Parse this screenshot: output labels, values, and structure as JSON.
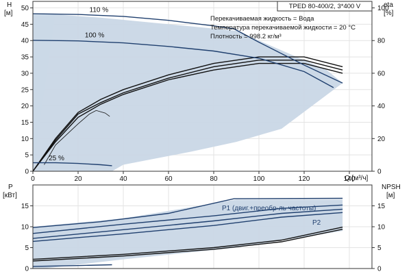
{
  "chart_data": {
    "type": "line",
    "title": "TPED 80-400/2, 3*400 V",
    "info_lines": [
      "Перекачиваемая жидкость = Вода",
      "Температура перекачиваемой жидкости = 20 °C",
      "Плотность = 998.2 кг/м³"
    ],
    "colors": {
      "curve": "#1f3f6e",
      "envelope": "#c9d7e6",
      "envelope_light": "#e6eef6",
      "black": "#111111",
      "grid": "#e3e3e3"
    },
    "top": {
      "ylabel": "H",
      "yunit": "[м]",
      "y2label": "eta",
      "y2unit": "[%]",
      "xlabel": "Q [м³/ч]",
      "xlim": [
        0,
        150
      ],
      "ylim": [
        0,
        52
      ],
      "y2lim": [
        0,
        104
      ],
      "xticks": [
        "0",
        "20",
        "40",
        "60",
        "80",
        "100",
        "120",
        "140"
      ],
      "yticks": [
        "0",
        "5",
        "10",
        "15",
        "20",
        "25",
        "30",
        "35",
        "40",
        "45",
        "50"
      ],
      "y2ticks": [
        "0",
        "20",
        "40",
        "60",
        "80",
        "100"
      ],
      "envelope": [
        [
          0,
          48
        ],
        [
          10,
          48
        ],
        [
          30,
          47
        ],
        [
          60,
          45
        ],
        [
          90,
          43
        ],
        [
          110,
          37
        ],
        [
          130,
          31
        ],
        [
          137,
          27
        ],
        [
          110,
          13
        ],
        [
          90,
          9
        ],
        [
          70,
          6
        ],
        [
          40,
          2
        ],
        [
          35,
          0
        ],
        [
          0,
          0
        ]
      ],
      "head_curves": [
        {
          "name": "110 %",
          "points": [
            [
              0,
              48.2
            ],
            [
              20,
              48
            ],
            [
              40,
              47.4
            ],
            [
              60,
              46.2
            ],
            [
              80,
              44.5
            ],
            [
              89,
              43.6
            ],
            [
              100,
              39.5
            ],
            [
              120,
              32.5
            ],
            [
              137,
              27
            ]
          ]
        },
        {
          "name": "100 %",
          "points": [
            [
              0,
              40.1
            ],
            [
              20,
              39.9
            ],
            [
              40,
              39.3
            ],
            [
              60,
              38.2
            ],
            [
              80,
              36.8
            ],
            [
              100,
              34.6
            ],
            [
              120,
              30.5
            ],
            [
              133,
              25.6
            ]
          ]
        },
        {
          "name": "25 %",
          "points": [
            [
              0,
              2.6
            ],
            [
              10,
              2.6
            ],
            [
              20,
              2.4
            ],
            [
              30,
              2
            ],
            [
              35,
              1.7
            ]
          ]
        }
      ],
      "eta_curves": [
        {
          "points": [
            [
              0,
              0
            ],
            [
              10,
              10
            ],
            [
              20,
              18
            ],
            [
              30,
              22
            ],
            [
              40,
              25
            ],
            [
              60,
              29.5
            ],
            [
              80,
              33
            ],
            [
              100,
              35
            ],
            [
              120,
              35
            ],
            [
              137,
              32
            ]
          ]
        },
        {
          "points": [
            [
              0,
              0
            ],
            [
              10,
              9.5
            ],
            [
              20,
              17.5
            ],
            [
              30,
              21
            ],
            [
              40,
              24
            ],
            [
              60,
              28.5
            ],
            [
              80,
              32
            ],
            [
              100,
              34
            ],
            [
              120,
              34
            ],
            [
              137,
              31
            ]
          ]
        },
        {
          "points": [
            [
              0,
              0
            ],
            [
              10,
              9
            ],
            [
              20,
              16.5
            ],
            [
              30,
              20.5
            ],
            [
              40,
              23.5
            ],
            [
              60,
              28
            ],
            [
              80,
              31
            ],
            [
              100,
              33
            ],
            [
              120,
              33
            ],
            [
              137,
              30
            ]
          ]
        }
      ],
      "npsh_curve": {
        "points": [
          [
            5,
            2
          ],
          [
            10,
            8
          ],
          [
            20,
            14.5
          ],
          [
            25,
            17.5
          ],
          [
            28,
            18.6
          ],
          [
            32,
            17.8
          ],
          [
            34,
            16.8
          ]
        ]
      }
    },
    "bottom": {
      "ylabel": "P",
      "yunit": "[кВт]",
      "y2label": "NPSH",
      "y2unit": "[м]",
      "xlim": [
        0,
        150
      ],
      "ylim": [
        0,
        20
      ],
      "y2lim": [
        0,
        20
      ],
      "yticks": [
        "0",
        "5",
        "10",
        "15"
      ],
      "y2ticks": [
        "0",
        "5",
        "10",
        "15"
      ],
      "envelope": [
        [
          0,
          10
        ],
        [
          40,
          12
        ],
        [
          90,
          16.5
        ],
        [
          137,
          16.5
        ],
        [
          137,
          9
        ],
        [
          90,
          5
        ],
        [
          40,
          2.2
        ],
        [
          5,
          0
        ],
        [
          0,
          0
        ]
      ],
      "series": [
        {
          "name": "P1 (двиг.+преобр-ль частоты)",
          "points": [
            [
              0,
              9.8
            ],
            [
              30,
              11.2
            ],
            [
              60,
              13.2
            ],
            [
              89,
              16.7
            ],
            [
              137,
              16.8
            ]
          ]
        },
        {
          "name": "P2",
          "points": [
            [
              0,
              8.4
            ],
            [
              40,
              10.6
            ],
            [
              80,
              12.6
            ],
            [
              110,
              14.4
            ],
            [
              137,
              15.2
            ]
          ]
        },
        {
          "name": "",
          "points": [
            [
              0,
              7.2
            ],
            [
              40,
              9.3
            ],
            [
              80,
              11.4
            ],
            [
              110,
              13.2
            ],
            [
              137,
              14.2
            ]
          ]
        },
        {
          "name": "",
          "points": [
            [
              0,
              6.5
            ],
            [
              40,
              8.3
            ],
            [
              80,
              10.3
            ],
            [
              110,
              12.3
            ],
            [
              137,
              13.4
            ]
          ]
        },
        {
          "name": "",
          "points": [
            [
              0,
              0.5
            ],
            [
              20,
              0.7
            ],
            [
              35,
              0.9
            ]
          ]
        }
      ],
      "npsh": [
        {
          "points": [
            [
              0,
              2.2
            ],
            [
              40,
              3.4
            ],
            [
              80,
              5
            ],
            [
              110,
              6.8
            ],
            [
              137,
              9.9
            ]
          ]
        },
        {
          "points": [
            [
              0,
              1.8
            ],
            [
              40,
              3
            ],
            [
              80,
              4.6
            ],
            [
              110,
              6.4
            ],
            [
              137,
              9.4
            ]
          ]
        }
      ],
      "p1_label": "P1 (двиг.+преобр-ль частоты)",
      "p2_label": "P2"
    }
  }
}
